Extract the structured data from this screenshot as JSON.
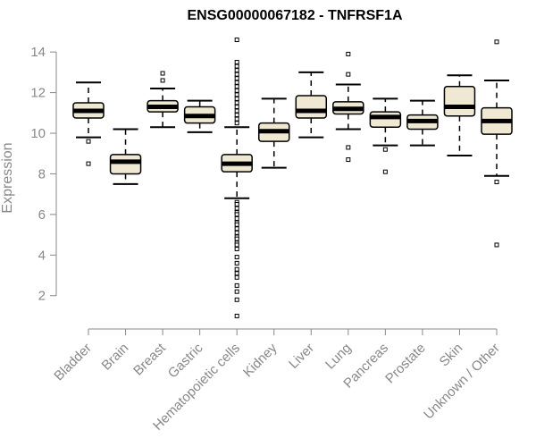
{
  "chart_data": {
    "type": "boxplot",
    "title": "ENSG00000067182 - TNFRSF1A",
    "xlabel": "",
    "ylabel": "Expression",
    "ylim": [
      0.8,
      14.8
    ],
    "yticks": [
      2,
      4,
      6,
      8,
      10,
      12,
      14
    ],
    "box_fill": "#efe8d2",
    "categories": [
      "Bladder",
      "Brain",
      "Breast",
      "Gastric",
      "Hematopoietic cells",
      "Kidney",
      "Liver",
      "Lung",
      "Pancreas",
      "Prostate",
      "Skin",
      "Unknown / Other"
    ],
    "series": [
      {
        "name": "Bladder",
        "whisker_low": 9.8,
        "q1": 10.75,
        "median": 11.1,
        "q3": 11.5,
        "whisker_high": 12.5,
        "outliers": [
          9.6,
          8.5
        ]
      },
      {
        "name": "Brain",
        "whisker_low": 7.5,
        "q1": 8.0,
        "median": 8.6,
        "q3": 8.95,
        "whisker_high": 10.2,
        "outliers": []
      },
      {
        "name": "Breast",
        "whisker_low": 10.3,
        "q1": 11.05,
        "median": 11.3,
        "q3": 11.6,
        "whisker_high": 12.2,
        "outliers": [
          12.6,
          12.95
        ]
      },
      {
        "name": "Gastric",
        "whisker_low": 10.05,
        "q1": 10.5,
        "median": 10.85,
        "q3": 11.3,
        "whisker_high": 11.6,
        "outliers": []
      },
      {
        "name": "Hematopoietic cells",
        "whisker_low": 6.8,
        "q1": 8.1,
        "median": 8.5,
        "q3": 8.95,
        "whisker_high": 10.3,
        "outliers": [
          14.6,
          13.5,
          13.3,
          13.1,
          12.9,
          12.7,
          12.5,
          12.3,
          12.1,
          11.9,
          11.7,
          11.5,
          11.3,
          11.1,
          10.9,
          10.7,
          10.5,
          6.6,
          6.5,
          6.3,
          6.1,
          6.0,
          5.8,
          5.6,
          5.5,
          5.3,
          5.1,
          4.9,
          4.8,
          4.6,
          4.5,
          4.3,
          3.9,
          3.6,
          3.3,
          3.1,
          2.9,
          2.5,
          2.2,
          1.8,
          1.0
        ]
      },
      {
        "name": "Kidney",
        "whisker_low": 8.3,
        "q1": 9.6,
        "median": 10.1,
        "q3": 10.5,
        "whisker_high": 11.7,
        "outliers": []
      },
      {
        "name": "Liver",
        "whisker_low": 9.8,
        "q1": 10.75,
        "median": 11.1,
        "q3": 11.85,
        "whisker_high": 13.0,
        "outliers": []
      },
      {
        "name": "Lung",
        "whisker_low": 10.2,
        "q1": 10.95,
        "median": 11.2,
        "q3": 11.55,
        "whisker_high": 12.4,
        "outliers": [
          13.9,
          12.9,
          9.3,
          8.7
        ]
      },
      {
        "name": "Pancreas",
        "whisker_low": 9.4,
        "q1": 10.3,
        "median": 10.8,
        "q3": 11.05,
        "whisker_high": 11.7,
        "outliers": [
          9.2,
          8.1
        ]
      },
      {
        "name": "Prostate",
        "whisker_low": 9.4,
        "q1": 10.2,
        "median": 10.6,
        "q3": 10.9,
        "whisker_high": 11.6,
        "outliers": []
      },
      {
        "name": "Skin",
        "whisker_low": 8.9,
        "q1": 10.85,
        "median": 11.3,
        "q3": 12.3,
        "whisker_high": 12.85,
        "outliers": []
      },
      {
        "name": "Unknown / Other",
        "whisker_low": 7.9,
        "q1": 9.95,
        "median": 10.6,
        "q3": 11.25,
        "whisker_high": 12.6,
        "outliers": [
          14.5,
          7.6,
          4.5
        ]
      }
    ]
  }
}
